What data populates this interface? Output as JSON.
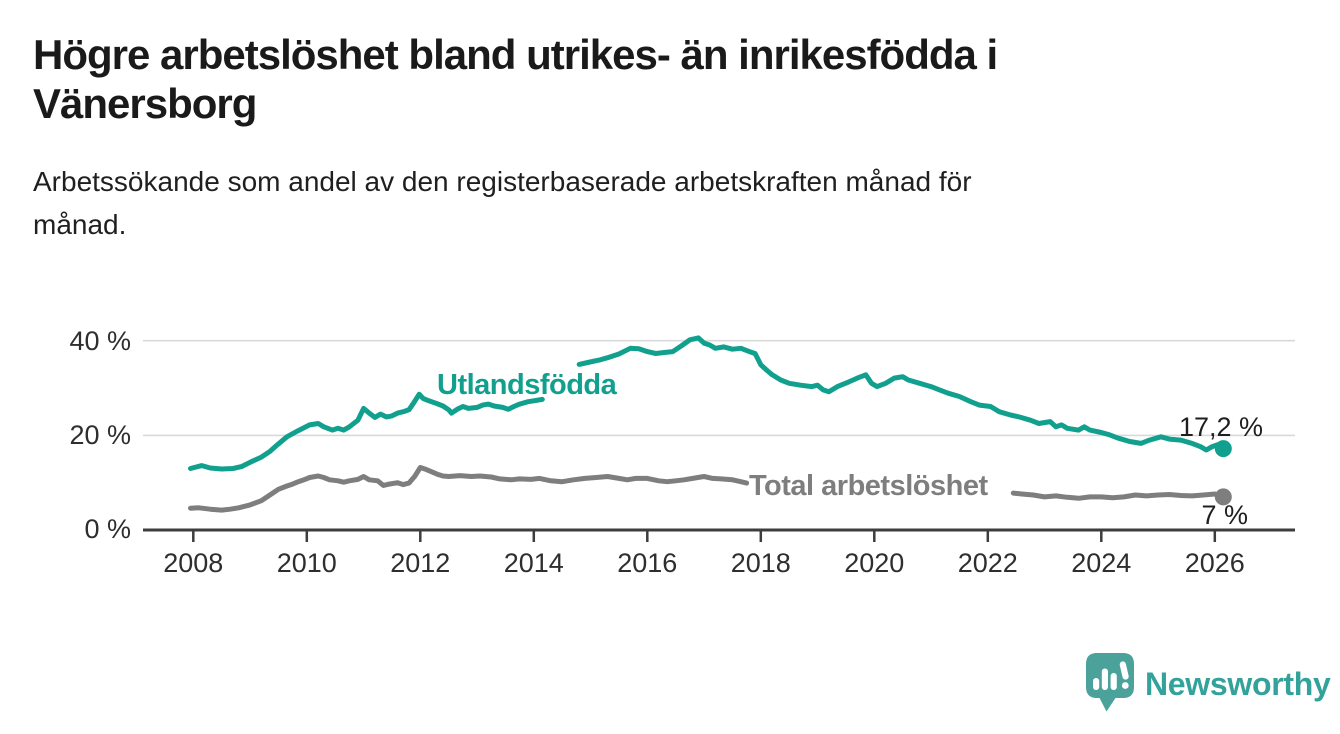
{
  "header": {
    "title_lines": [
      "Högre arbetslöshet bland utrikes- än inrikesfödda i",
      "Vänersborg"
    ],
    "subtitle_lines": [
      "Arbetssökande som andel av den registerbaserade arbetskraften månad för",
      "månad."
    ]
  },
  "footer": {
    "brand": "Newsworthy"
  },
  "chart_data": {
    "type": "line",
    "title": "Högre arbetslöshet bland utrikes- än inrikesfödda i Vänersborg",
    "subtitle": "Arbetssökande som andel av den registerbaserade arbetskraften månad för månad.",
    "unit": "%",
    "xlim": [
      2007.2,
      2027.3
    ],
    "ylim": [
      0,
      42
    ],
    "grid": "horizontal-20-40",
    "x_ticks": [
      2008,
      2010,
      2012,
      2014,
      2016,
      2018,
      2020,
      2022,
      2024,
      2026
    ],
    "x_tick_labels": [
      "2008",
      "2010",
      "2012",
      "2014",
      "2016",
      "2018",
      "2020",
      "2022",
      "2024",
      "2026"
    ],
    "y_ticks": [
      0,
      20,
      40
    ],
    "y_tick_labels": [
      "0 %",
      "20 %",
      "40 %"
    ],
    "colors": {
      "foreign_born": "#12A08E",
      "total": "#7E7E7E",
      "grid": "#D9D9D9",
      "axis": "#3D3D3D"
    },
    "series": [
      {
        "name": "Utlandsfödda",
        "color": "#12A08E",
        "end_value": 17.2,
        "end_label": "17,2 %",
        "segments": [
          [
            [
              2007.95,
              13.0
            ],
            [
              2008.15,
              13.6
            ],
            [
              2008.3,
              13.1
            ],
            [
              2008.5,
              12.9
            ],
            [
              2008.7,
              13.0
            ],
            [
              2008.85,
              13.4
            ],
            [
              2009.0,
              14.3
            ],
            [
              2009.2,
              15.4
            ],
            [
              2009.35,
              16.6
            ],
            [
              2009.5,
              18.2
            ],
            [
              2009.65,
              19.7
            ],
            [
              2009.85,
              21.0
            ],
            [
              2010.05,
              22.2
            ],
            [
              2010.2,
              22.5
            ],
            [
              2010.3,
              21.8
            ],
            [
              2010.45,
              21.1
            ],
            [
              2010.55,
              21.5
            ],
            [
              2010.65,
              21.1
            ],
            [
              2010.75,
              21.8
            ],
            [
              2010.9,
              23.2
            ],
            [
              2011.0,
              25.7
            ],
            [
              2011.1,
              24.7
            ],
            [
              2011.2,
              23.8
            ],
            [
              2011.3,
              24.5
            ],
            [
              2011.4,
              23.9
            ],
            [
              2011.5,
              24.1
            ],
            [
              2011.6,
              24.7
            ],
            [
              2011.7,
              25.0
            ],
            [
              2011.8,
              25.4
            ],
            [
              2011.88,
              26.8
            ],
            [
              2011.98,
              28.7
            ],
            [
              2012.05,
              27.8
            ],
            [
              2012.15,
              27.3
            ],
            [
              2012.25,
              26.9
            ],
            [
              2012.4,
              26.2
            ],
            [
              2012.5,
              25.4
            ],
            [
              2012.55,
              24.7
            ],
            [
              2012.65,
              25.5
            ],
            [
              2012.75,
              26.1
            ],
            [
              2012.85,
              25.7
            ],
            [
              2013.0,
              25.9
            ],
            [
              2013.1,
              26.4
            ],
            [
              2013.2,
              26.6
            ],
            [
              2013.3,
              26.2
            ],
            [
              2013.45,
              25.9
            ],
            [
              2013.55,
              25.5
            ],
            [
              2013.65,
              26.1
            ],
            [
              2013.75,
              26.6
            ],
            [
              2013.9,
              27.1
            ],
            [
              2014.0,
              27.3
            ],
            [
              2014.15,
              27.6
            ]
          ],
          [
            [
              2014.8,
              35.0
            ],
            [
              2014.95,
              35.4
            ],
            [
              2015.15,
              35.9
            ],
            [
              2015.3,
              36.4
            ],
            [
              2015.5,
              37.2
            ],
            [
              2015.7,
              38.4
            ],
            [
              2015.85,
              38.3
            ],
            [
              2016.0,
              37.7
            ],
            [
              2016.15,
              37.3
            ],
            [
              2016.3,
              37.5
            ],
            [
              2016.45,
              37.7
            ],
            [
              2016.6,
              38.9
            ],
            [
              2016.75,
              40.2
            ],
            [
              2016.9,
              40.6
            ],
            [
              2017.0,
              39.5
            ],
            [
              2017.1,
              39.1
            ],
            [
              2017.2,
              38.4
            ],
            [
              2017.35,
              38.7
            ],
            [
              2017.5,
              38.2
            ],
            [
              2017.65,
              38.4
            ],
            [
              2017.8,
              37.7
            ],
            [
              2017.9,
              37.3
            ],
            [
              2018.0,
              34.9
            ],
            [
              2018.1,
              33.8
            ],
            [
              2018.2,
              32.8
            ],
            [
              2018.35,
              31.7
            ],
            [
              2018.5,
              31.0
            ],
            [
              2018.7,
              30.6
            ],
            [
              2018.9,
              30.3
            ],
            [
              2019.0,
              30.6
            ],
            [
              2019.1,
              29.6
            ],
            [
              2019.2,
              29.2
            ],
            [
              2019.35,
              30.3
            ],
            [
              2019.55,
              31.3
            ],
            [
              2019.7,
              32.1
            ],
            [
              2019.85,
              32.8
            ],
            [
              2019.95,
              31.0
            ],
            [
              2020.05,
              30.3
            ],
            [
              2020.2,
              31.0
            ],
            [
              2020.35,
              32.1
            ],
            [
              2020.5,
              32.4
            ],
            [
              2020.6,
              31.7
            ],
            [
              2020.8,
              31.0
            ],
            [
              2021.0,
              30.3
            ],
            [
              2021.15,
              29.6
            ],
            [
              2021.3,
              28.9
            ],
            [
              2021.5,
              28.2
            ],
            [
              2021.7,
              27.1
            ],
            [
              2021.85,
              26.4
            ],
            [
              2022.05,
              26.1
            ],
            [
              2022.2,
              25.0
            ],
            [
              2022.4,
              24.3
            ],
            [
              2022.55,
              23.9
            ],
            [
              2022.75,
              23.2
            ],
            [
              2022.9,
              22.5
            ],
            [
              2023.1,
              22.9
            ],
            [
              2023.2,
              21.8
            ],
            [
              2023.3,
              22.2
            ],
            [
              2023.4,
              21.5
            ],
            [
              2023.6,
              21.1
            ],
            [
              2023.7,
              21.8
            ],
            [
              2023.8,
              21.1
            ],
            [
              2024.0,
              20.6
            ],
            [
              2024.15,
              20.1
            ],
            [
              2024.3,
              19.4
            ],
            [
              2024.5,
              18.7
            ],
            [
              2024.7,
              18.3
            ],
            [
              2024.85,
              19.0
            ],
            [
              2025.05,
              19.7
            ],
            [
              2025.2,
              19.2
            ],
            [
              2025.4,
              19.0
            ],
            [
              2025.6,
              18.3
            ],
            [
              2025.75,
              17.6
            ],
            [
              2025.85,
              16.9
            ],
            [
              2025.95,
              17.6
            ],
            [
              2026.05,
              18.0
            ],
            [
              2026.15,
              17.2
            ]
          ]
        ]
      },
      {
        "name": "Total arbetslöshet",
        "color": "#7E7E7E",
        "end_value": 7.0,
        "end_label": "7 %",
        "segments": [
          [
            [
              2007.95,
              4.6
            ],
            [
              2008.1,
              4.7
            ],
            [
              2008.3,
              4.4
            ],
            [
              2008.5,
              4.2
            ],
            [
              2008.65,
              4.4
            ],
            [
              2008.8,
              4.7
            ],
            [
              2009.0,
              5.3
            ],
            [
              2009.2,
              6.2
            ],
            [
              2009.35,
              7.4
            ],
            [
              2009.5,
              8.6
            ],
            [
              2009.65,
              9.3
            ],
            [
              2009.75,
              9.7
            ],
            [
              2009.85,
              10.2
            ],
            [
              2009.95,
              10.6
            ],
            [
              2010.05,
              11.1
            ],
            [
              2010.2,
              11.4
            ],
            [
              2010.3,
              11.1
            ],
            [
              2010.4,
              10.6
            ],
            [
              2010.55,
              10.4
            ],
            [
              2010.65,
              10.1
            ],
            [
              2010.75,
              10.4
            ],
            [
              2010.9,
              10.7
            ],
            [
              2011.0,
              11.3
            ],
            [
              2011.1,
              10.6
            ],
            [
              2011.25,
              10.4
            ],
            [
              2011.35,
              9.4
            ],
            [
              2011.45,
              9.7
            ],
            [
              2011.6,
              10.0
            ],
            [
              2011.7,
              9.6
            ],
            [
              2011.8,
              9.9
            ],
            [
              2011.9,
              11.3
            ],
            [
              2012.0,
              13.2
            ],
            [
              2012.1,
              12.8
            ],
            [
              2012.2,
              12.3
            ],
            [
              2012.3,
              11.8
            ],
            [
              2012.4,
              11.4
            ],
            [
              2012.5,
              11.3
            ],
            [
              2012.7,
              11.5
            ],
            [
              2012.9,
              11.3
            ],
            [
              2013.05,
              11.4
            ],
            [
              2013.25,
              11.2
            ],
            [
              2013.4,
              10.8
            ],
            [
              2013.6,
              10.6
            ],
            [
              2013.75,
              10.8
            ],
            [
              2013.95,
              10.7
            ],
            [
              2014.1,
              10.9
            ],
            [
              2014.3,
              10.4
            ],
            [
              2014.5,
              10.2
            ],
            [
              2014.7,
              10.6
            ],
            [
              2014.9,
              10.9
            ],
            [
              2015.1,
              11.1
            ],
            [
              2015.3,
              11.3
            ],
            [
              2015.5,
              10.9
            ],
            [
              2015.65,
              10.6
            ],
            [
              2015.8,
              10.9
            ],
            [
              2016.0,
              10.9
            ],
            [
              2016.2,
              10.4
            ],
            [
              2016.35,
              10.2
            ],
            [
              2016.5,
              10.4
            ],
            [
              2016.65,
              10.6
            ],
            [
              2016.8,
              10.9
            ],
            [
              2017.0,
              11.3
            ],
            [
              2017.15,
              10.9
            ],
            [
              2017.3,
              10.8
            ],
            [
              2017.5,
              10.6
            ],
            [
              2017.65,
              10.2
            ],
            [
              2017.75,
              9.9
            ]
          ],
          [
            [
              2022.45,
              7.8
            ],
            [
              2022.6,
              7.6
            ],
            [
              2022.8,
              7.4
            ],
            [
              2023.0,
              7.0
            ],
            [
              2023.2,
              7.2
            ],
            [
              2023.4,
              6.9
            ],
            [
              2023.6,
              6.7
            ],
            [
              2023.8,
              7.0
            ],
            [
              2024.0,
              7.0
            ],
            [
              2024.2,
              6.8
            ],
            [
              2024.4,
              7.0
            ],
            [
              2024.6,
              7.4
            ],
            [
              2024.8,
              7.2
            ],
            [
              2025.0,
              7.4
            ],
            [
              2025.2,
              7.5
            ],
            [
              2025.4,
              7.3
            ],
            [
              2025.6,
              7.2
            ],
            [
              2025.8,
              7.4
            ],
            [
              2026.0,
              7.6
            ],
            [
              2026.15,
              7.0
            ]
          ]
        ]
      }
    ]
  }
}
